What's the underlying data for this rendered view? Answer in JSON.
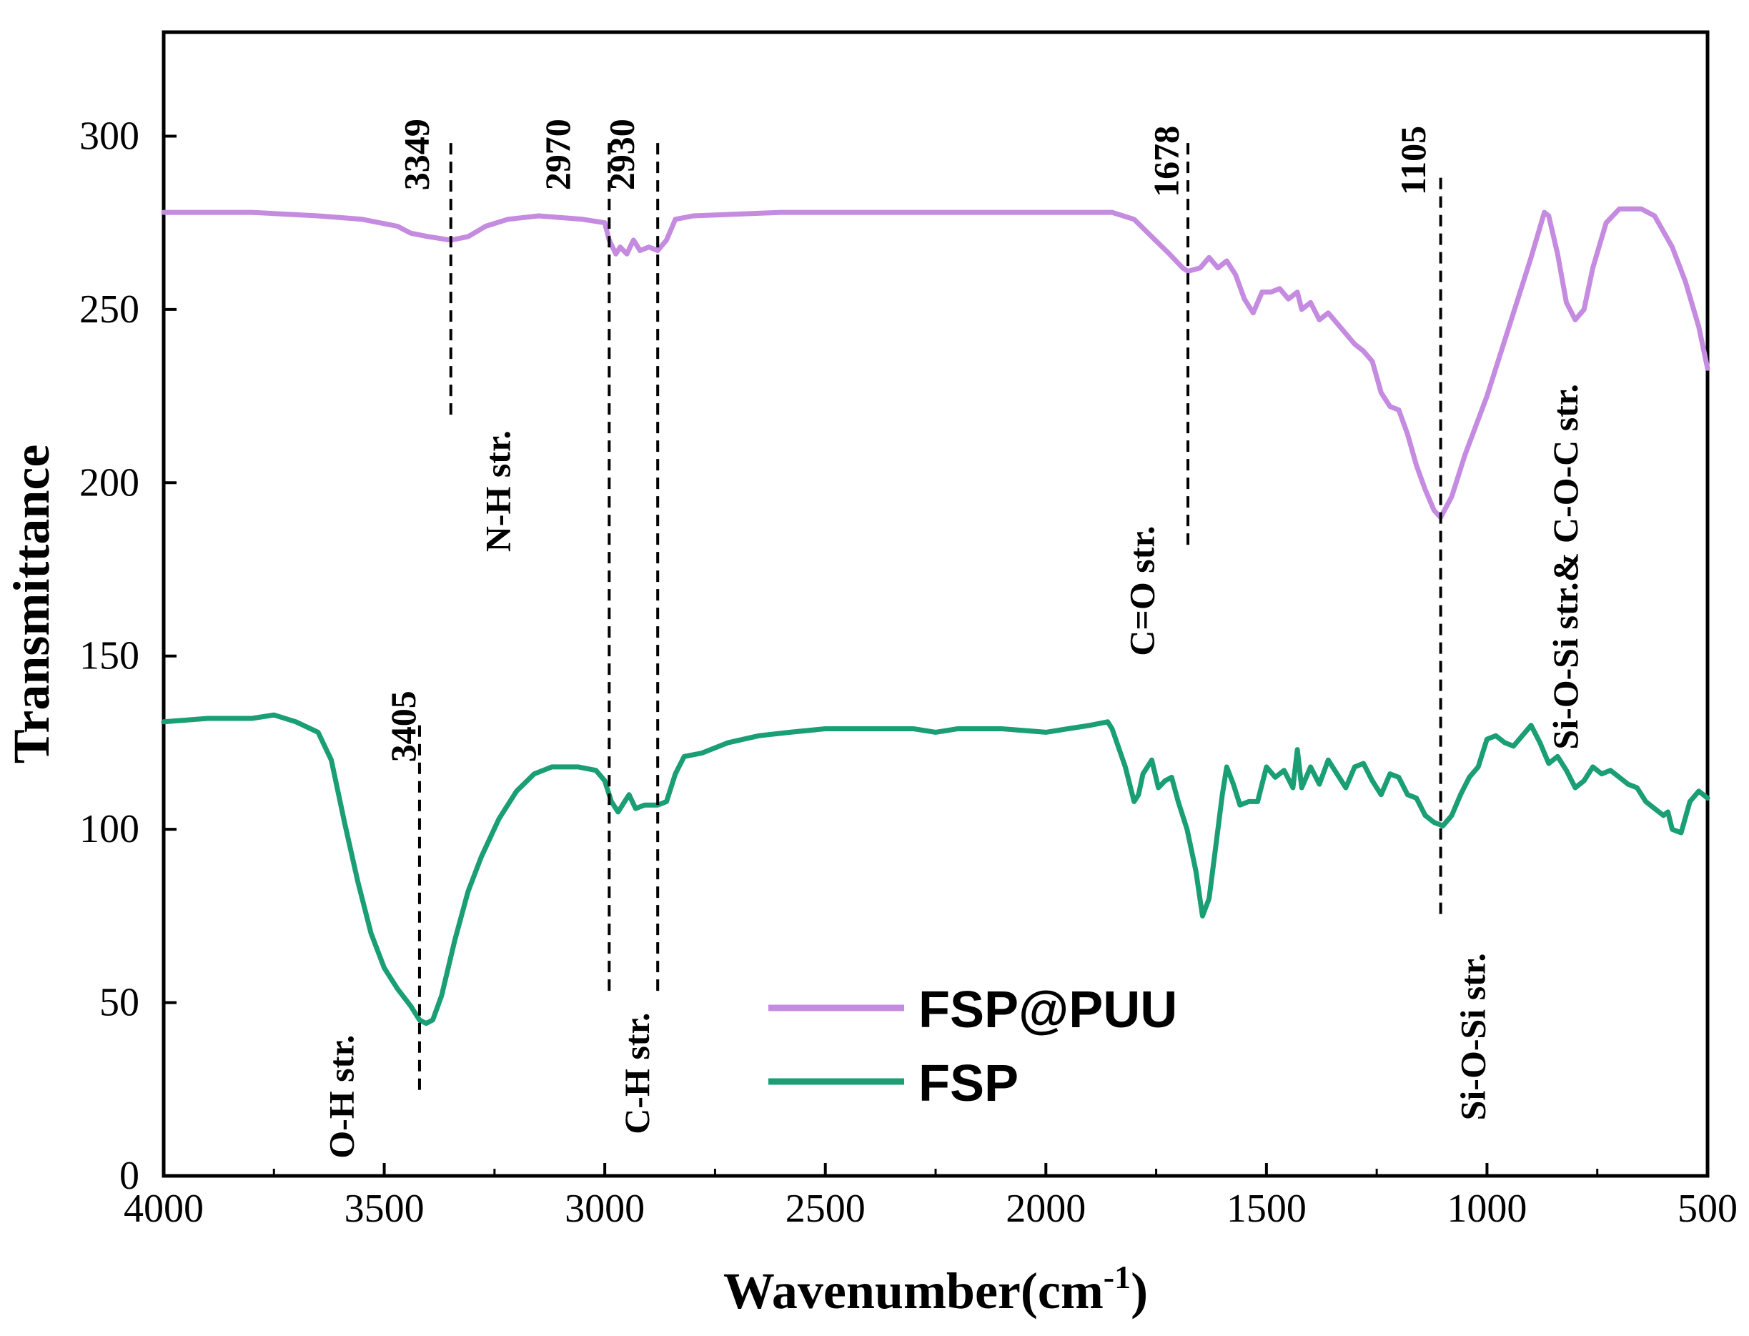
{
  "chart_data": {
    "type": "line",
    "title": "",
    "xlabel": "Wavenumber(cm",
    "xlabel_sup": "-1",
    "xlabel_close": ")",
    "ylabel": "Transmittance",
    "xlim": [
      4000,
      500
    ],
    "ylim": [
      0,
      330
    ],
    "x_ticks": [
      4000,
      3500,
      3000,
      2500,
      2000,
      1500,
      1000,
      500
    ],
    "y_ticks": [
      0,
      50,
      100,
      150,
      200,
      250,
      300
    ],
    "legend_position": "bottom-center",
    "series": [
      {
        "name": "FSP@PUU",
        "color": "#c58be0",
        "points": [
          [
            4000,
            278
          ],
          [
            3800,
            278
          ],
          [
            3650,
            277
          ],
          [
            3550,
            276
          ],
          [
            3470,
            274
          ],
          [
            3440,
            272
          ],
          [
            3400,
            271
          ],
          [
            3349,
            270
          ],
          [
            3310,
            271
          ],
          [
            3270,
            274
          ],
          [
            3220,
            276
          ],
          [
            3150,
            277
          ],
          [
            3050,
            276
          ],
          [
            3000,
            275
          ],
          [
            2990,
            270
          ],
          [
            2975,
            266
          ],
          [
            2965,
            268
          ],
          [
            2950,
            266
          ],
          [
            2935,
            270
          ],
          [
            2920,
            267
          ],
          [
            2900,
            268
          ],
          [
            2880,
            267
          ],
          [
            2860,
            270
          ],
          [
            2840,
            276
          ],
          [
            2800,
            277
          ],
          [
            2600,
            278
          ],
          [
            2400,
            278
          ],
          [
            2200,
            278
          ],
          [
            2000,
            278
          ],
          [
            1900,
            278
          ],
          [
            1850,
            278
          ],
          [
            1800,
            276
          ],
          [
            1760,
            271
          ],
          [
            1720,
            266
          ],
          [
            1690,
            262
          ],
          [
            1678,
            261
          ],
          [
            1650,
            262
          ],
          [
            1630,
            265
          ],
          [
            1610,
            262
          ],
          [
            1590,
            264
          ],
          [
            1570,
            260
          ],
          [
            1550,
            253
          ],
          [
            1530,
            249
          ],
          [
            1510,
            255
          ],
          [
            1490,
            255
          ],
          [
            1470,
            256
          ],
          [
            1450,
            253
          ],
          [
            1430,
            255
          ],
          [
            1420,
            250
          ],
          [
            1400,
            252
          ],
          [
            1380,
            247
          ],
          [
            1360,
            249
          ],
          [
            1340,
            246
          ],
          [
            1300,
            240
          ],
          [
            1280,
            238
          ],
          [
            1260,
            235
          ],
          [
            1240,
            226
          ],
          [
            1220,
            222
          ],
          [
            1200,
            221
          ],
          [
            1180,
            214
          ],
          [
            1160,
            205
          ],
          [
            1140,
            198
          ],
          [
            1120,
            192
          ],
          [
            1105,
            190
          ],
          [
            1080,
            196
          ],
          [
            1050,
            208
          ],
          [
            1000,
            225
          ],
          [
            950,
            245
          ],
          [
            900,
            265
          ],
          [
            870,
            278
          ],
          [
            860,
            277
          ],
          [
            840,
            266
          ],
          [
            820,
            252
          ],
          [
            800,
            247
          ],
          [
            780,
            250
          ],
          [
            760,
            262
          ],
          [
            730,
            275
          ],
          [
            700,
            279
          ],
          [
            650,
            279
          ],
          [
            620,
            277
          ],
          [
            580,
            268
          ],
          [
            550,
            258
          ],
          [
            520,
            245
          ],
          [
            500,
            233
          ]
        ]
      },
      {
        "name": "FSP",
        "color": "#1a9e73",
        "points": [
          [
            4000,
            131
          ],
          [
            3900,
            132
          ],
          [
            3800,
            132
          ],
          [
            3750,
            133
          ],
          [
            3700,
            131
          ],
          [
            3650,
            128
          ],
          [
            3620,
            120
          ],
          [
            3590,
            102
          ],
          [
            3560,
            85
          ],
          [
            3530,
            70
          ],
          [
            3500,
            60
          ],
          [
            3470,
            54
          ],
          [
            3440,
            49
          ],
          [
            3420,
            45
          ],
          [
            3405,
            44
          ],
          [
            3390,
            45
          ],
          [
            3370,
            52
          ],
          [
            3340,
            68
          ],
          [
            3310,
            82
          ],
          [
            3280,
            92
          ],
          [
            3240,
            103
          ],
          [
            3200,
            111
          ],
          [
            3160,
            116
          ],
          [
            3120,
            118
          ],
          [
            3060,
            118
          ],
          [
            3020,
            117
          ],
          [
            3000,
            114
          ],
          [
            2985,
            108
          ],
          [
            2970,
            105
          ],
          [
            2955,
            108
          ],
          [
            2945,
            110
          ],
          [
            2930,
            106
          ],
          [
            2910,
            107
          ],
          [
            2880,
            107
          ],
          [
            2860,
            108
          ],
          [
            2840,
            116
          ],
          [
            2820,
            121
          ],
          [
            2780,
            122
          ],
          [
            2720,
            125
          ],
          [
            2650,
            127
          ],
          [
            2580,
            128
          ],
          [
            2500,
            129
          ],
          [
            2400,
            129
          ],
          [
            2300,
            129
          ],
          [
            2250,
            128
          ],
          [
            2200,
            129
          ],
          [
            2100,
            129
          ],
          [
            2000,
            128
          ],
          [
            1950,
            129
          ],
          [
            1900,
            130
          ],
          [
            1860,
            131
          ],
          [
            1850,
            129
          ],
          [
            1820,
            118
          ],
          [
            1800,
            108
          ],
          [
            1790,
            110
          ],
          [
            1780,
            116
          ],
          [
            1760,
            120
          ],
          [
            1745,
            112
          ],
          [
            1730,
            114
          ],
          [
            1715,
            115
          ],
          [
            1700,
            108
          ],
          [
            1680,
            100
          ],
          [
            1660,
            88
          ],
          [
            1645,
            75
          ],
          [
            1630,
            80
          ],
          [
            1615,
            95
          ],
          [
            1600,
            110
          ],
          [
            1590,
            118
          ],
          [
            1575,
            113
          ],
          [
            1560,
            107
          ],
          [
            1540,
            108
          ],
          [
            1520,
            108
          ],
          [
            1500,
            118
          ],
          [
            1480,
            115
          ],
          [
            1460,
            117
          ],
          [
            1440,
            112
          ],
          [
            1430,
            123
          ],
          [
            1420,
            112
          ],
          [
            1400,
            118
          ],
          [
            1380,
            113
          ],
          [
            1360,
            120
          ],
          [
            1340,
            116
          ],
          [
            1320,
            112
          ],
          [
            1300,
            118
          ],
          [
            1280,
            119
          ],
          [
            1260,
            114
          ],
          [
            1240,
            110
          ],
          [
            1220,
            116
          ],
          [
            1200,
            115
          ],
          [
            1180,
            110
          ],
          [
            1160,
            109
          ],
          [
            1140,
            104
          ],
          [
            1120,
            102
          ],
          [
            1100,
            101
          ],
          [
            1080,
            104
          ],
          [
            1060,
            110
          ],
          [
            1040,
            115
          ],
          [
            1020,
            118
          ],
          [
            1000,
            126
          ],
          [
            980,
            127
          ],
          [
            960,
            125
          ],
          [
            940,
            124
          ],
          [
            920,
            127
          ],
          [
            900,
            130
          ],
          [
            880,
            125
          ],
          [
            860,
            119
          ],
          [
            840,
            121
          ],
          [
            820,
            117
          ],
          [
            800,
            112
          ],
          [
            780,
            114
          ],
          [
            760,
            118
          ],
          [
            740,
            116
          ],
          [
            720,
            117
          ],
          [
            700,
            115
          ],
          [
            680,
            113
          ],
          [
            660,
            112
          ],
          [
            640,
            108
          ],
          [
            620,
            106
          ],
          [
            600,
            104
          ],
          [
            590,
            105
          ],
          [
            580,
            100
          ],
          [
            560,
            99
          ],
          [
            540,
            108
          ],
          [
            520,
            111
          ],
          [
            500,
            109
          ]
        ]
      }
    ],
    "annotations": [
      {
        "label": "3349",
        "x": 3349,
        "y_top": 298,
        "y_bottom": 218,
        "text_x": 3400,
        "text_y": 305,
        "side": "top"
      },
      {
        "label": "2970",
        "x": 2990,
        "y_top": 298,
        "y_bottom": 52,
        "text_x": 3080,
        "text_y": 305,
        "side": "top"
      },
      {
        "label": "2930",
        "x": 2880,
        "y_top": 298,
        "y_bottom": 52,
        "text_x": 2935,
        "text_y": 305,
        "side": "top"
      },
      {
        "label": "1678",
        "x": 1678,
        "y_top": 298,
        "y_bottom": 182,
        "text_x": 1700,
        "text_y": 303,
        "side": "top"
      },
      {
        "label": "1105",
        "x": 1105,
        "y_top": 288,
        "y_bottom": 75,
        "text_x": 1140,
        "text_y": 303,
        "side": "top"
      },
      {
        "label": "3405",
        "x": 3420,
        "y_top": 130,
        "y_bottom": 24,
        "text_x": 3430,
        "text_y": 140,
        "side": "top"
      },
      {
        "label": "N-H str.",
        "text_x": 3215,
        "text_y": 180
      },
      {
        "label": "C=O str.",
        "text_x": 1755,
        "text_y": 150
      },
      {
        "label": "Si-O-Si str.& C-O-C str.",
        "text_x": 795,
        "text_y": 123
      },
      {
        "label": "O-H str.",
        "text_x": 3570,
        "text_y": 5
      },
      {
        "label": "C-H str.",
        "text_x": 2900,
        "text_y": 12
      },
      {
        "label": "Si-O-Si str.",
        "text_x": 1005,
        "text_y": 16
      }
    ]
  }
}
